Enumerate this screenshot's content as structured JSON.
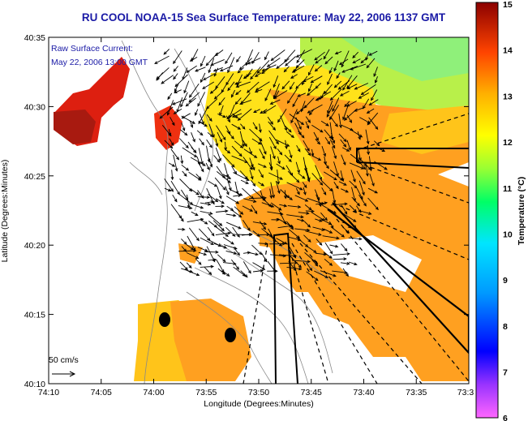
{
  "title": "RU COOL  NOAA-15  Sea Surface Temperature:  May 22, 2006 1137 GMT",
  "legend_text": {
    "line1": "Raw Surface Current:",
    "line2": "May 22, 2006 13:00 GMT"
  },
  "scale_label": "50 cm/s",
  "axes": {
    "xlabel": "Longitude (Degrees:Minutes)",
    "ylabel": "Latitude (Degrees:Minutes)",
    "x_ticks": [
      "74:10",
      "74:05",
      "74:00",
      "73:55",
      "73:50",
      "73:45",
      "73:40",
      "73:35",
      "73:3"
    ],
    "y_ticks": [
      "40:35",
      "40:30",
      "40:25",
      "40:20",
      "40:15",
      "40:10"
    ]
  },
  "colorbar": {
    "label": "Temperature (°C)",
    "ticks": [
      "15",
      "14",
      "13",
      "12",
      "11",
      "10",
      "9",
      "8",
      "7",
      "6"
    ],
    "range": [
      6,
      15
    ]
  },
  "colors": {
    "title": "#1a1aa6",
    "cold": "#ff66ff",
    "warm": "#8b0000"
  }
}
